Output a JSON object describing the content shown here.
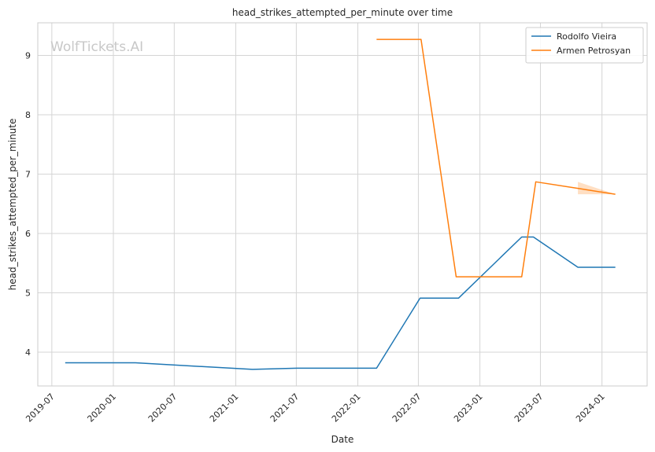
{
  "chart_data": {
    "type": "line",
    "title": "head_strikes_attempted_per_minute over time",
    "xlabel": "Date",
    "ylabel": "head_strikes_attempted_per_minute",
    "watermark": "WolfTickets.AI",
    "x_ticks": [
      "2019-07",
      "2020-01",
      "2020-07",
      "2021-01",
      "2021-07",
      "2022-01",
      "2022-07",
      "2023-01",
      "2023-07",
      "2024-01"
    ],
    "y_ticks": [
      4,
      5,
      6,
      7,
      8,
      9
    ],
    "xlim": [
      "2019-05-20",
      "2024-05-15"
    ],
    "ylim": [
      3.43,
      9.55
    ],
    "grid": true,
    "legend_position": "top-right",
    "series": [
      {
        "name": "Rodolfo Vieira",
        "color": "#1f77b4",
        "points": [
          {
            "x": "2019-08-10",
            "y": 3.82
          },
          {
            "x": "2020-03-07",
            "y": 3.82
          },
          {
            "x": "2021-02-20",
            "y": 3.71
          },
          {
            "x": "2021-07-03",
            "y": 3.73
          },
          {
            "x": "2022-02-26",
            "y": 3.73
          },
          {
            "x": "2022-07-06",
            "y": 4.91
          },
          {
            "x": "2022-10-29",
            "y": 4.91
          },
          {
            "x": "2023-05-06",
            "y": 5.94
          },
          {
            "x": "2023-06-10",
            "y": 5.94
          },
          {
            "x": "2023-10-21",
            "y": 5.43
          },
          {
            "x": "2024-02-10",
            "y": 5.43
          }
        ]
      },
      {
        "name": "Armen Petrosyan",
        "color": "#ff7f0e",
        "points": [
          {
            "x": "2022-02-26",
            "y": 9.27
          },
          {
            "x": "2022-07-09",
            "y": 9.27
          },
          {
            "x": "2022-10-22",
            "y": 5.27
          },
          {
            "x": "2023-05-06",
            "y": 5.27
          },
          {
            "x": "2023-06-17",
            "y": 6.87
          },
          {
            "x": "2023-10-21",
            "y": 6.76
          },
          {
            "x": "2024-02-10",
            "y": 6.66
          }
        ],
        "band": [
          {
            "x": "2023-10-21",
            "low": 6.66,
            "high": 6.87
          },
          {
            "x": "2024-02-10",
            "low": 6.66,
            "high": 6.66
          }
        ]
      }
    ]
  }
}
